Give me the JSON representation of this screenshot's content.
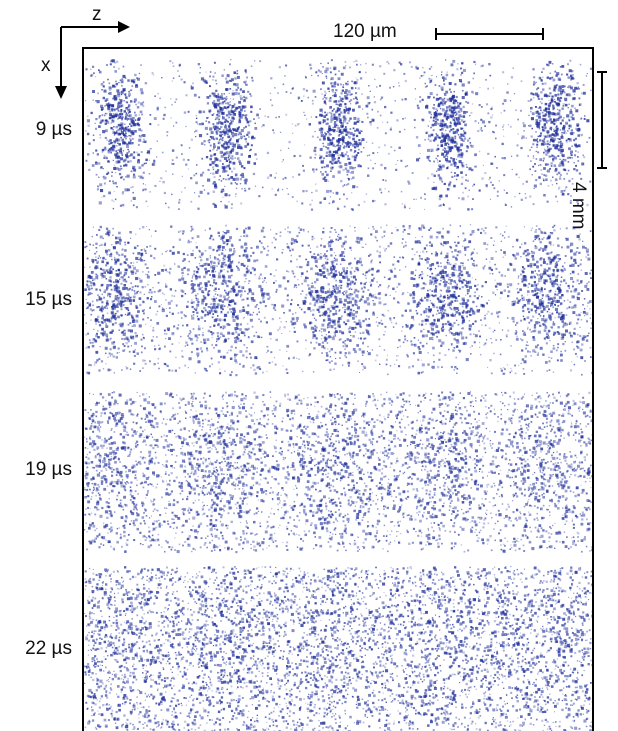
{
  "axes": {
    "horizontal": "z",
    "vertical": "x"
  },
  "scale_bars": {
    "horizontal": "120 µm",
    "vertical": "4 mm"
  },
  "panels": [
    {
      "time_label": "9 µs",
      "blob_count": 5,
      "clarity": "sharp"
    },
    {
      "time_label": "15 µs",
      "blob_count": 5,
      "clarity": "moderate"
    },
    {
      "time_label": "19 µs",
      "blob_count": 5,
      "clarity": "diffuse"
    },
    {
      "time_label": "22 µs",
      "blob_count": 5,
      "clarity": "washed-out"
    }
  ],
  "colors": {
    "dots": "#1f2f9a",
    "background": "#ffffff",
    "frame": "#000000"
  }
}
